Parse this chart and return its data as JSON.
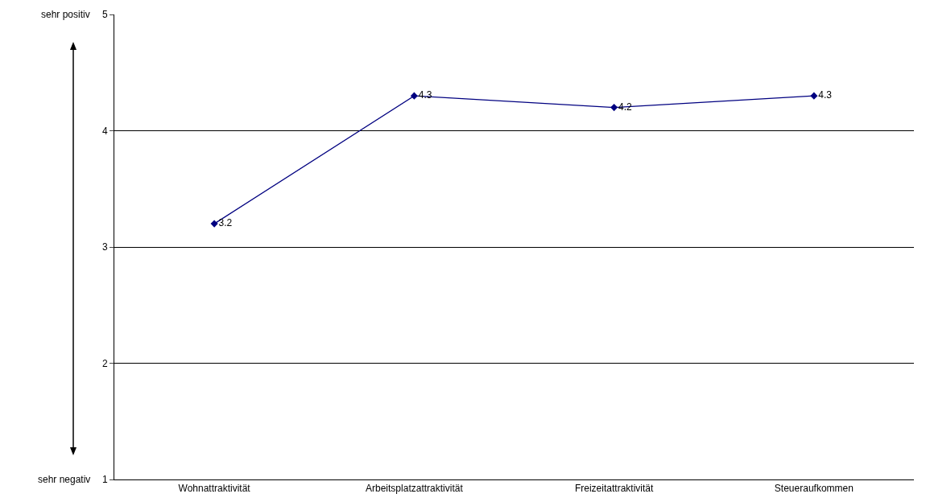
{
  "chart_data": {
    "type": "line",
    "categories": [
      "Wohnattraktivität",
      "Arbeitsplatzattraktivität",
      "Freizeitattraktivität",
      "Steueraufkommen"
    ],
    "series": [
      {
        "color": "#000080",
        "values": [
          3.2,
          4.3,
          4.2,
          4.3
        ]
      }
    ],
    "ylim": [
      1,
      5
    ],
    "yticks": [
      1,
      2,
      3,
      4,
      5
    ],
    "grid": "y",
    "legend": false,
    "marker": "diamond",
    "line_style": "solid",
    "data_labels": true,
    "annotations": [
      "sehr positiv",
      "sehr negativ"
    ]
  }
}
